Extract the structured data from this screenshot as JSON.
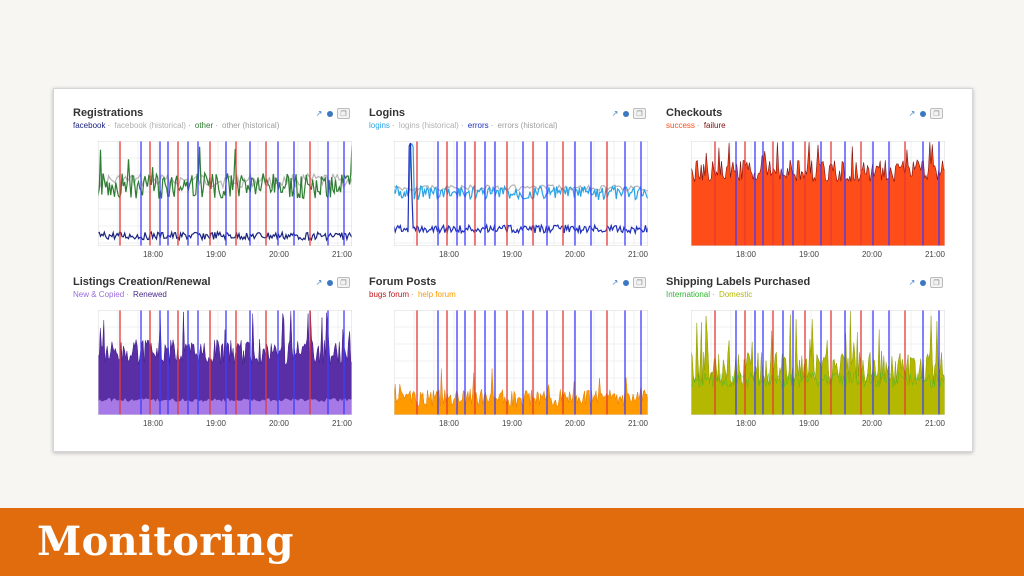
{
  "slide_title": "Monitoring",
  "time_ticks": [
    "18:00",
    "19:00",
    "20:00",
    "21:00"
  ],
  "icon_names": [
    "share-icon",
    "settings-icon",
    "copy-icon"
  ],
  "panels": [
    {
      "title": "Registrations",
      "legend": [
        {
          "label": "facebook",
          "color": "#1a237e"
        },
        {
          "label": "facebook (historical)",
          "color": "#b0b0b0"
        },
        {
          "label": "other",
          "color": "#2e7d32"
        },
        {
          "label": "other (historical)",
          "color": "#9e9e9e"
        }
      ]
    },
    {
      "title": "Logins",
      "legend": [
        {
          "label": "logins",
          "color": "#29a3e6"
        },
        {
          "label": "logins (historical)",
          "color": "#b0b0b0"
        },
        {
          "label": "errors",
          "color": "#1e2fb8"
        },
        {
          "label": "errors (historical)",
          "color": "#9e9e9e"
        }
      ]
    },
    {
      "title": "Checkouts",
      "legend": [
        {
          "label": "success",
          "color": "#ff4d1a"
        },
        {
          "label": "failure",
          "color": "#7a1010"
        }
      ]
    },
    {
      "title": "Listings Creation/Renewal",
      "legend": [
        {
          "label": "New & Copied",
          "color": "#9c6ade"
        },
        {
          "label": "Renewed",
          "color": "#4a2a8a"
        }
      ]
    },
    {
      "title": "Forum Posts",
      "legend": [
        {
          "label": "bugs forum",
          "color": "#c0161a"
        },
        {
          "label": "help forum",
          "color": "#ff9a00"
        }
      ]
    },
    {
      "title": "Shipping Labels Purchased",
      "legend": [
        {
          "label": "International",
          "color": "#2fb52f"
        },
        {
          "label": "Domestic",
          "color": "#b5b800"
        }
      ]
    }
  ]
}
